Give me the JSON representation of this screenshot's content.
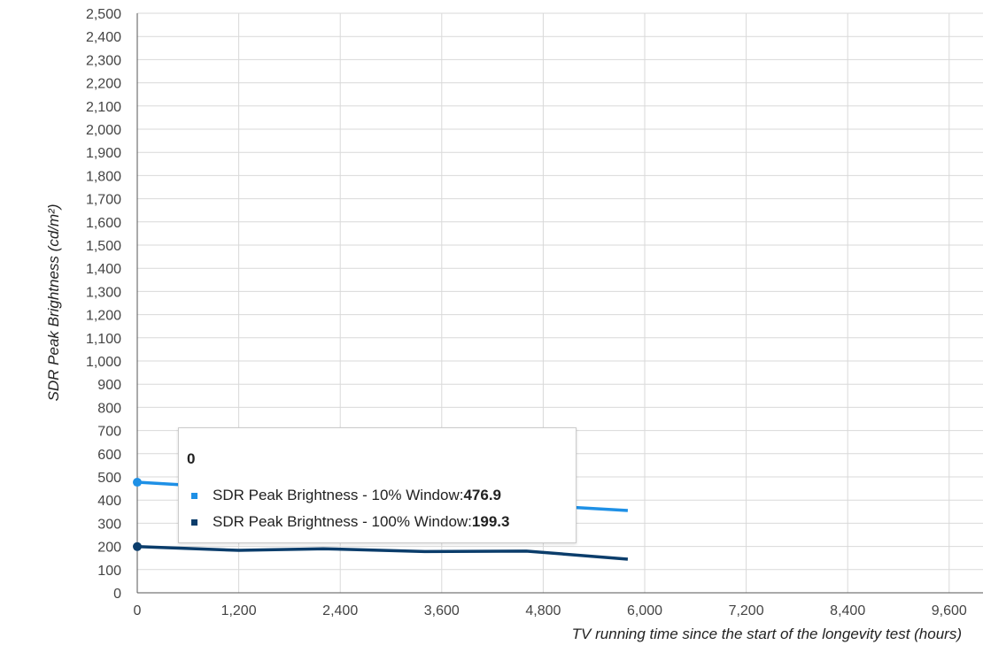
{
  "chart_data": {
    "type": "line",
    "title": "",
    "xlabel": "TV running time since the start of the longevity test (hours)",
    "ylabel": "SDR Peak Brightness (cd/m²)",
    "xlim": [
      0,
      10000
    ],
    "ylim": [
      0,
      2500
    ],
    "x_ticks": [
      0,
      1200,
      2400,
      3600,
      4800,
      6000,
      7200,
      8400,
      9600
    ],
    "x_tick_labels": [
      "0",
      "1,200",
      "2,400",
      "3,600",
      "4,800",
      "6,000",
      "7,200",
      "8,400",
      "9,600"
    ],
    "y_ticks": [
      0,
      100,
      200,
      300,
      400,
      500,
      600,
      700,
      800,
      900,
      1000,
      1100,
      1200,
      1300,
      1400,
      1500,
      1600,
      1700,
      1800,
      1900,
      2000,
      2100,
      2200,
      2300,
      2400,
      2500
    ],
    "y_tick_labels": [
      "0",
      "100",
      "200",
      "300",
      "400",
      "500",
      "600",
      "700",
      "800",
      "900",
      "1,000",
      "1,100",
      "1,200",
      "1,300",
      "1,400",
      "1,500",
      "1,600",
      "1,700",
      "1,800",
      "1,900",
      "2,000",
      "2,100",
      "2,200",
      "2,300",
      "2,400",
      "2,500"
    ],
    "grid": true,
    "series": [
      {
        "name": "SDR Peak Brightness - 10% Window",
        "color": "#1e90e6",
        "x": [
          0,
          5800
        ],
        "values": [
          476.9,
          355
        ]
      },
      {
        "name": "SDR Peak Brightness - 100% Window",
        "color": "#0b3d6b",
        "x": [
          0,
          1200,
          2200,
          3400,
          4600,
          5800
        ],
        "values": [
          199.3,
          183,
          190,
          178,
          180,
          145
        ]
      }
    ],
    "tooltip": {
      "header": "0",
      "items": [
        {
          "label": "SDR Peak Brightness - 10% Window: ",
          "value": "476.9",
          "color": "#1e90e6"
        },
        {
          "label": "SDR Peak Brightness - 100% Window: ",
          "value": "199.3",
          "color": "#0b3d6b"
        }
      ]
    }
  }
}
